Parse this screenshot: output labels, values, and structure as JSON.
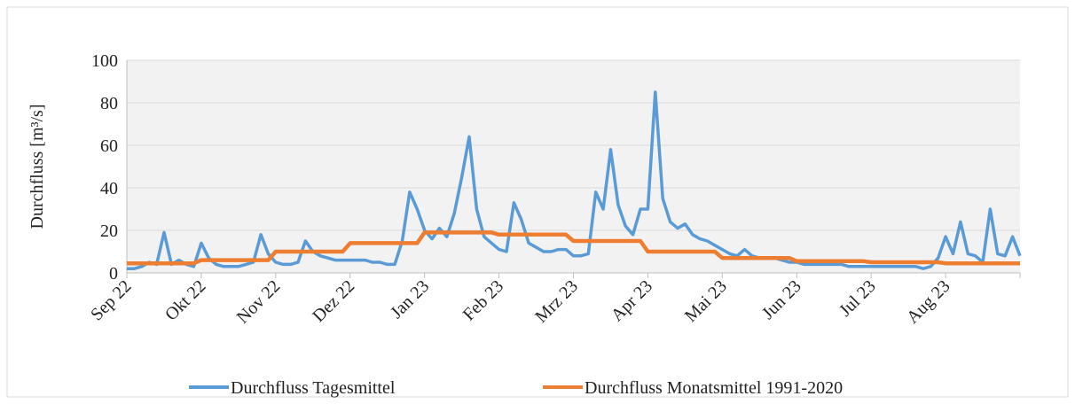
{
  "chart_data": {
    "type": "line",
    "y_label": "Durchfluss [m³/s]",
    "categories": [
      "Sep 22",
      null,
      null,
      null,
      null,
      null,
      null,
      null,
      null,
      null,
      "Okt 22",
      null,
      null,
      null,
      null,
      null,
      null,
      null,
      null,
      null,
      "Nov 22",
      null,
      null,
      null,
      null,
      null,
      null,
      null,
      null,
      null,
      "Dez 22",
      null,
      null,
      null,
      null,
      null,
      null,
      null,
      null,
      null,
      "Jan 23",
      null,
      null,
      null,
      null,
      null,
      null,
      null,
      null,
      null,
      "Feb 23",
      null,
      null,
      null,
      null,
      null,
      null,
      null,
      null,
      null,
      "Mrz 23",
      null,
      null,
      null,
      null,
      null,
      null,
      null,
      null,
      null,
      "Apr 23",
      null,
      null,
      null,
      null,
      null,
      null,
      null,
      null,
      null,
      "Mai 23",
      null,
      null,
      null,
      null,
      null,
      null,
      null,
      null,
      null,
      "Jun 23",
      null,
      null,
      null,
      null,
      null,
      null,
      null,
      null,
      null,
      "Jul 23",
      null,
      null,
      null,
      null,
      null,
      null,
      null,
      null,
      null,
      "Aug 23",
      null,
      null,
      null,
      null,
      null,
      null,
      null,
      null,
      null,
      null
    ],
    "series": [
      {
        "name": "Durchfluss Tagesmittel",
        "color": "#5b9bd5",
        "values": [
          2,
          2,
          3,
          5,
          4,
          19,
          4,
          6,
          4,
          3,
          14,
          7,
          4,
          3,
          3,
          3,
          4,
          5,
          18,
          9,
          5,
          4,
          4,
          5,
          15,
          10,
          8,
          7,
          6,
          6,
          6,
          6,
          6,
          5,
          5,
          4,
          4,
          15,
          38,
          30,
          20,
          16,
          21,
          17,
          28,
          45,
          64,
          30,
          17,
          14,
          11,
          10,
          33,
          25,
          14,
          12,
          10,
          10,
          11,
          11,
          8,
          8,
          9,
          38,
          30,
          58,
          32,
          22,
          18,
          30,
          30,
          85,
          35,
          24,
          21,
          23,
          18,
          16,
          15,
          13,
          11,
          9,
          8,
          11,
          8,
          7,
          7,
          7,
          6,
          5,
          5,
          4,
          4,
          4,
          4,
          4,
          4,
          3,
          3,
          3,
          3,
          3,
          3,
          3,
          3,
          3,
          3,
          2,
          3,
          7,
          17,
          9,
          24,
          9,
          8,
          5,
          30,
          9,
          8,
          17,
          8
        ]
      },
      {
        "name": "Durchfluss Monatsmittel 1991-2020",
        "color": "#ed7d31",
        "values": [
          4.5,
          4.5,
          4.5,
          4.5,
          4.5,
          4.5,
          4.5,
          4.5,
          4.5,
          4.5,
          6,
          6,
          6,
          6,
          6,
          6,
          6,
          6,
          6,
          6,
          10,
          10,
          10,
          10,
          10,
          10,
          10,
          10,
          10,
          10,
          14,
          14,
          14,
          14,
          14,
          14,
          14,
          14,
          14,
          14,
          19,
          19,
          19,
          19,
          19,
          19,
          19,
          19,
          19,
          19,
          18,
          18,
          18,
          18,
          18,
          18,
          18,
          18,
          18,
          18,
          15,
          15,
          15,
          15,
          15,
          15,
          15,
          15,
          15,
          15,
          10,
          10,
          10,
          10,
          10,
          10,
          10,
          10,
          10,
          10,
          7,
          7,
          7,
          7,
          7,
          7,
          7,
          7,
          7,
          7,
          5.5,
          5.5,
          5.5,
          5.5,
          5.5,
          5.5,
          5.5,
          5.5,
          5.5,
          5.5,
          5,
          5,
          5,
          5,
          5,
          5,
          5,
          5,
          5,
          5,
          4.5,
          4.5,
          4.5,
          4.5,
          4.5,
          4.5,
          4.5,
          4.5,
          4.5,
          4.5,
          4.5
        ]
      }
    ],
    "ylim": [
      0,
      100
    ],
    "yticks": [
      0,
      20,
      40,
      60,
      80,
      100
    ],
    "grid": true,
    "legend": "bottom"
  }
}
